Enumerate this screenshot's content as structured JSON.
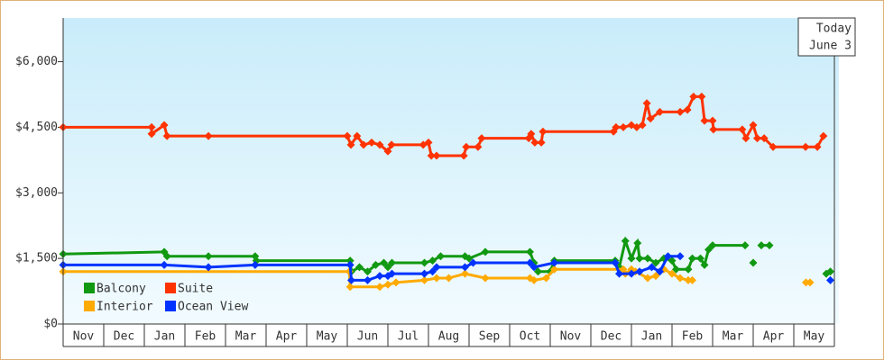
{
  "chart_data": {
    "type": "line",
    "categories": [
      "Nov",
      "Dec",
      "Jan",
      "Feb",
      "Mar",
      "Apr",
      "May",
      "Jun",
      "Jul",
      "Aug",
      "Sep",
      "Oct",
      "Nov",
      "Dec",
      "Jan",
      "Feb",
      "Mar",
      "Apr",
      "May"
    ],
    "xlim": [
      0,
      19
    ],
    "ylim": [
      0,
      7000
    ],
    "yticks": [
      {
        "value": 0,
        "label": "$0"
      },
      {
        "value": 1500,
        "label": "$1,500"
      },
      {
        "value": 3000,
        "label": "$3,000"
      },
      {
        "value": 4500,
        "label": "$4,500"
      },
      {
        "value": 6000,
        "label": "$6,000"
      }
    ],
    "annotations": [
      "Today",
      "June 3"
    ],
    "series": [
      {
        "name": "Balcony",
        "color": "#119911",
        "x": [
          0,
          2.49,
          2.56,
          3.58,
          4.73,
          4.76,
          7.07,
          7.1,
          7.3,
          7.5,
          7.7,
          7.9,
          8.0,
          8.1,
          8.9,
          9.1,
          9.3,
          9.9,
          10.0,
          10.4,
          11.5,
          11.6,
          11.7,
          12.0,
          12.1,
          13.6,
          13.7,
          13.85,
          14.0,
          14.15,
          14.2,
          14.4,
          14.6,
          14.8,
          15.0,
          15.1,
          15.4,
          15.5,
          15.7,
          15.8,
          15.9,
          16.0,
          16.8,
          null,
          17.0,
          null,
          17.2,
          17.4,
          null,
          18.8,
          18.9
        ],
        "values": [
          1600,
          1650,
          1550,
          1550,
          1550,
          1450,
          1450,
          1200,
          1300,
          1200,
          1350,
          1400,
          1300,
          1400,
          1400,
          1450,
          1550,
          1550,
          1500,
          1650,
          1650,
          1400,
          1200,
          1200,
          1450,
          1450,
          1300,
          1900,
          1500,
          1850,
          1500,
          1500,
          1400,
          1500,
          1450,
          1250,
          1250,
          1500,
          1500,
          1350,
          1700,
          1800,
          1800,
          null,
          1400,
          null,
          1800,
          1800,
          null,
          1150,
          1200
        ]
      },
      {
        "name": "Suite",
        "color": "#ff3300",
        "x": [
          0,
          2.18,
          2.18,
          2.49,
          2.56,
          3.58,
          7.0,
          7.09,
          7.24,
          7.4,
          7.6,
          7.8,
          8.0,
          8.09,
          8.87,
          9.0,
          9.07,
          9.2,
          9.87,
          9.93,
          10.22,
          10.31,
          11.47,
          11.53,
          11.62,
          11.78,
          11.82,
          13.56,
          13.62,
          13.8,
          14.0,
          14.13,
          14.27,
          14.38,
          14.47,
          14.7,
          15.2,
          15.38,
          15.53,
          15.73,
          15.8,
          16.0,
          16.02,
          16.73,
          16.82,
          17.0,
          17.1,
          17.27,
          17.49,
          18.29,
          18.58,
          18.73
        ],
        "values": [
          4500,
          4500,
          4350,
          4550,
          4300,
          4300,
          4300,
          4100,
          4300,
          4100,
          4150,
          4100,
          3950,
          4100,
          4100,
          4150,
          3850,
          3850,
          3850,
          4050,
          4050,
          4250,
          4250,
          4350,
          4150,
          4150,
          4400,
          4400,
          4500,
          4500,
          4550,
          4500,
          4550,
          5050,
          4700,
          4850,
          4850,
          4900,
          5200,
          5200,
          4650,
          4650,
          4450,
          4450,
          4250,
          4550,
          4250,
          4250,
          4050,
          4050,
          4050,
          4300
        ]
      },
      {
        "name": "Interior",
        "color": "#ffaa00",
        "x": [
          0,
          7.05,
          7.07,
          7.8,
          8.0,
          8.2,
          8.9,
          9.2,
          9.5,
          9.9,
          10.4,
          11.5,
          11.6,
          11.9,
          12.1,
          13.8,
          13.85,
          14.0,
          14.1,
          14.4,
          14.6,
          14.8,
          15.0,
          15.2,
          15.4,
          15.5,
          null,
          18.3,
          18.4
        ],
        "values": [
          1200,
          1200,
          850,
          850,
          900,
          950,
          1000,
          1050,
          1050,
          1150,
          1050,
          1050,
          1000,
          1050,
          1250,
          1250,
          1150,
          1250,
          1200,
          1050,
          1100,
          1250,
          1150,
          1050,
          1000,
          1000,
          null,
          950,
          950
        ]
      },
      {
        "name": "Ocean View",
        "color": "#0033ff",
        "x": [
          0,
          2.49,
          3.58,
          4.73,
          7.07,
          7.1,
          7.5,
          7.8,
          8.0,
          8.1,
          8.9,
          9.1,
          9.2,
          9.9,
          10.1,
          11.5,
          11.6,
          12.1,
          13.6,
          13.7,
          14.0,
          14.2,
          14.5,
          14.7,
          14.9,
          15.2,
          null,
          18.9
        ],
        "values": [
          1350,
          1350,
          1300,
          1350,
          1350,
          1000,
          1000,
          1100,
          1100,
          1150,
          1150,
          1200,
          1300,
          1300,
          1400,
          1400,
          1300,
          1400,
          1400,
          1150,
          1150,
          1200,
          1300,
          1200,
          1550,
          1550,
          null,
          1000
        ]
      }
    ]
  }
}
